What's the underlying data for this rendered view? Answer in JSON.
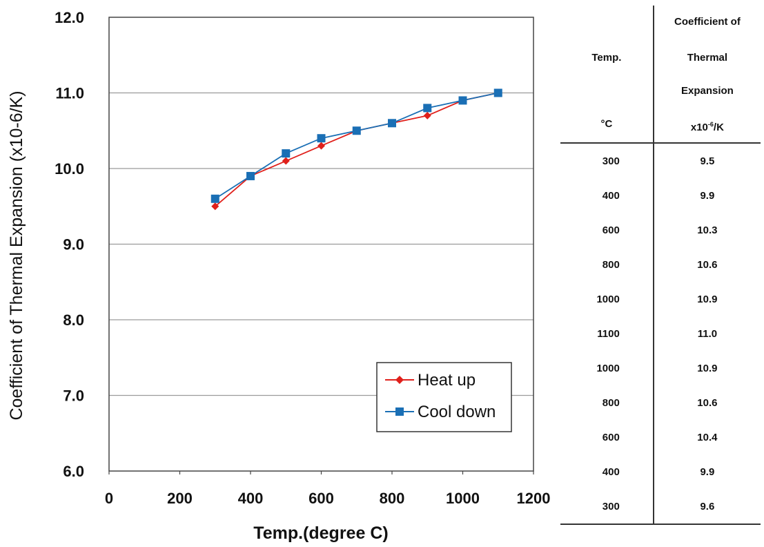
{
  "chart_data": {
    "type": "line",
    "title": "",
    "xlabel": "Temp.(degree C)",
    "ylabel": "Coefficient of Thermal Expansion (x10-6/K)",
    "xlim": [
      0,
      1200
    ],
    "ylim": [
      6.0,
      12.0
    ],
    "x_ticks": [
      "0",
      "200",
      "400",
      "600",
      "800",
      "1000",
      "1200"
    ],
    "y_ticks": [
      "6.0",
      "7.0",
      "8.0",
      "9.0",
      "10.0",
      "11.0",
      "12.0"
    ],
    "grid": "horizontal",
    "legend_position": "bottom-right",
    "series": [
      {
        "name": "Heat up",
        "color": "#e0201b",
        "marker": "diamond",
        "x": [
          300,
          400,
          500,
          600,
          700,
          800,
          900,
          1000,
          1100
        ],
        "y": [
          9.5,
          9.9,
          10.1,
          10.3,
          10.5,
          10.6,
          10.7,
          10.9,
          11.0
        ]
      },
      {
        "name": "Cool down",
        "color": "#1a6fb5",
        "marker": "square",
        "x": [
          300,
          400,
          500,
          600,
          700,
          800,
          900,
          1000,
          1100
        ],
        "y": [
          9.6,
          9.9,
          10.2,
          10.4,
          10.5,
          10.6,
          10.8,
          10.9,
          11.0
        ]
      }
    ]
  },
  "table": {
    "temp_header": "Temp.",
    "temp_unit": "°C",
    "cte_header_lines": [
      "Coefficient of",
      "Thermal",
      "Expansion"
    ],
    "cte_unit_prefix": "x10",
    "cte_unit_exp": "-6",
    "cte_unit_suffix": "/K",
    "rows": [
      {
        "temp": "300",
        "cte": "9.5"
      },
      {
        "temp": "400",
        "cte": "9.9"
      },
      {
        "temp": "600",
        "cte": "10.3"
      },
      {
        "temp": "800",
        "cte": "10.6"
      },
      {
        "temp": "1000",
        "cte": "10.9"
      },
      {
        "temp": "1100",
        "cte": "11.0"
      },
      {
        "temp": "1000",
        "cte": "10.9"
      },
      {
        "temp": "800",
        "cte": "10.6"
      },
      {
        "temp": "600",
        "cte": "10.4"
      },
      {
        "temp": "400",
        "cte": "9.9"
      },
      {
        "temp": "300",
        "cte": "9.6"
      }
    ]
  }
}
